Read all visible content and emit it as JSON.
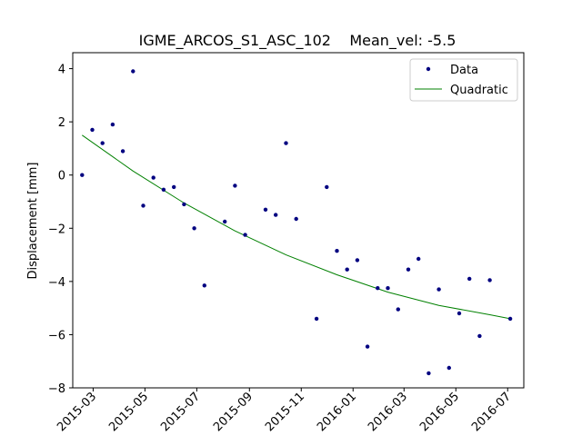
{
  "chart_data": {
    "type": "scatter",
    "title": "IGME_ARCOS_S1_ASC_102    Mean_vel: -5.5",
    "xlabel": "",
    "ylabel": "Displacement [mm]",
    "xlim": [
      "2015-02-05",
      "2016-07-20"
    ],
    "ylim": [
      -8,
      4.6
    ],
    "x_ticks": [
      "2015-03",
      "2015-05",
      "2015-07",
      "2015-09",
      "2015-11",
      "2016-01",
      "2016-03",
      "2016-05",
      "2016-07"
    ],
    "y_ticks": [
      -8,
      -6,
      -4,
      -2,
      0,
      2,
      4
    ],
    "grid": false,
    "legend_position": "upper right",
    "series": [
      {
        "name": "Data",
        "kind": "points",
        "color": "#000080",
        "points": [
          {
            "x": "2015-02-16",
            "y": 0.0
          },
          {
            "x": "2015-02-28",
            "y": 1.7
          },
          {
            "x": "2015-03-12",
            "y": 1.2
          },
          {
            "x": "2015-03-24",
            "y": 1.9
          },
          {
            "x": "2015-04-05",
            "y": 0.9
          },
          {
            "x": "2015-04-17",
            "y": 3.9
          },
          {
            "x": "2015-04-29",
            "y": -1.15
          },
          {
            "x": "2015-05-11",
            "y": -0.1
          },
          {
            "x": "2015-05-23",
            "y": -0.55
          },
          {
            "x": "2015-06-04",
            "y": -0.45
          },
          {
            "x": "2015-06-16",
            "y": -1.1
          },
          {
            "x": "2015-06-28",
            "y": -2.0
          },
          {
            "x": "2015-07-10",
            "y": -4.15
          },
          {
            "x": "2015-08-03",
            "y": -1.75
          },
          {
            "x": "2015-08-15",
            "y": -0.4
          },
          {
            "x": "2015-08-27",
            "y": -2.25
          },
          {
            "x": "2015-09-20",
            "y": -1.3
          },
          {
            "x": "2015-10-02",
            "y": -1.5
          },
          {
            "x": "2015-10-14",
            "y": 1.2
          },
          {
            "x": "2015-10-26",
            "y": -1.65
          },
          {
            "x": "2015-11-19",
            "y": -5.4
          },
          {
            "x": "2015-12-01",
            "y": -0.45
          },
          {
            "x": "2015-12-13",
            "y": -2.85
          },
          {
            "x": "2015-12-25",
            "y": -3.55
          },
          {
            "x": "2016-01-06",
            "y": -3.2
          },
          {
            "x": "2016-01-18",
            "y": -6.45
          },
          {
            "x": "2016-01-30",
            "y": -4.25
          },
          {
            "x": "2016-02-11",
            "y": -4.25
          },
          {
            "x": "2016-02-23",
            "y": -5.05
          },
          {
            "x": "2016-03-06",
            "y": -3.55
          },
          {
            "x": "2016-03-18",
            "y": -3.15
          },
          {
            "x": "2016-03-30",
            "y": -7.45
          },
          {
            "x": "2016-04-11",
            "y": -4.3
          },
          {
            "x": "2016-04-23",
            "y": -7.25
          },
          {
            "x": "2016-05-05",
            "y": -5.2
          },
          {
            "x": "2016-05-17",
            "y": -3.9
          },
          {
            "x": "2016-05-29",
            "y": -6.05
          },
          {
            "x": "2016-06-10",
            "y": -3.95
          },
          {
            "x": "2016-07-04",
            "y": -5.4
          }
        ]
      },
      {
        "name": "Quadratic",
        "kind": "line",
        "color": "#008000",
        "points": [
          {
            "x": "2015-02-16",
            "y": 1.5
          },
          {
            "x": "2015-04-17",
            "y": 0.15
          },
          {
            "x": "2015-06-16",
            "y": -1.05
          },
          {
            "x": "2015-08-15",
            "y": -2.1
          },
          {
            "x": "2015-10-14",
            "y": -3.0
          },
          {
            "x": "2015-12-13",
            "y": -3.75
          },
          {
            "x": "2016-02-11",
            "y": -4.4
          },
          {
            "x": "2016-04-11",
            "y": -4.9
          },
          {
            "x": "2016-06-10",
            "y": -5.25
          },
          {
            "x": "2016-07-04",
            "y": -5.4
          }
        ]
      }
    ]
  }
}
